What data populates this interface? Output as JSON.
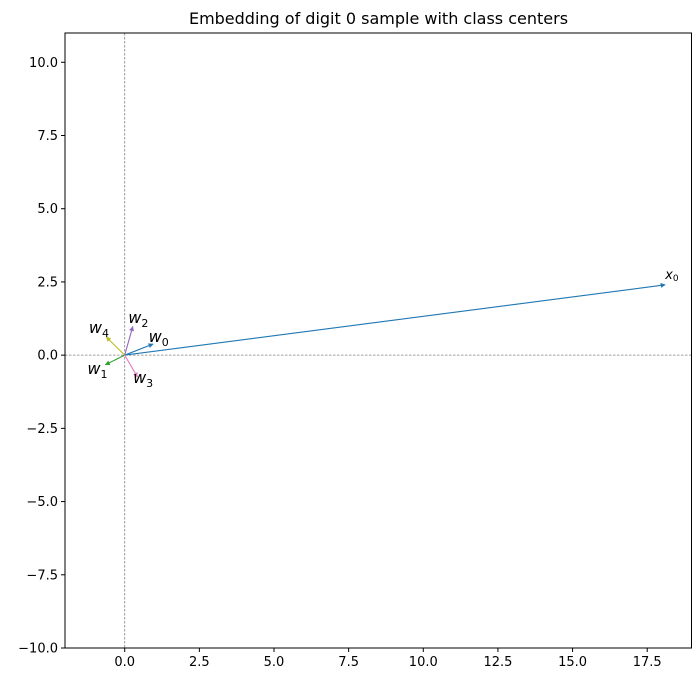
{
  "chart_data": {
    "type": "vector",
    "title": "Embedding of digit 0 sample with class centers",
    "xlabel": "",
    "ylabel": "",
    "xlim": [
      -2.0,
      19.0
    ],
    "ylim": [
      -10.0,
      11.0
    ],
    "x_ticks": [
      0.0,
      2.5,
      5.0,
      7.5,
      10.0,
      12.5,
      15.0,
      17.5
    ],
    "x_tick_labels": [
      "0.0",
      "2.5",
      "5.0",
      "7.5",
      "10.0",
      "12.5",
      "15.0",
      "17.5"
    ],
    "y_ticks": [
      -10.0,
      -7.5,
      -5.0,
      -2.5,
      0.0,
      2.5,
      5.0,
      7.5,
      10.0
    ],
    "y_tick_labels": [
      "−10.0",
      "−7.5",
      "−5.0",
      "−2.5",
      "0.0",
      "2.5",
      "5.0",
      "7.5",
      "10.0"
    ],
    "grid": false,
    "reference_lines": {
      "x": 0,
      "y": 0,
      "style": "dashed",
      "color": "#808080"
    },
    "vectors": [
      {
        "name": "x",
        "sub": "0",
        "x": 18.1,
        "y": 2.4,
        "color": "#1f77b4",
        "label_x": 18.1,
        "label_y": 2.6
      },
      {
        "name": "w",
        "sub": "0",
        "x": 0.95,
        "y": 0.38,
        "color": "#1f77b4",
        "label_x": 0.8,
        "label_y": 0.45
      },
      {
        "name": "w",
        "sub": "1",
        "x": -0.65,
        "y": -0.33,
        "color": "#2ca02c",
        "label_x": -1.25,
        "label_y": -0.65
      },
      {
        "name": "w",
        "sub": "2",
        "x": 0.27,
        "y": 0.98,
        "color": "#9467bd",
        "label_x": 0.12,
        "label_y": 1.1
      },
      {
        "name": "w",
        "sub": "3",
        "x": 0.43,
        "y": -0.75,
        "color": "#e377c2",
        "label_x": 0.28,
        "label_y": -0.95
      },
      {
        "name": "w",
        "sub": "4",
        "x": -0.62,
        "y": 0.62,
        "color": "#bcbd22",
        "label_x": -1.2,
        "label_y": 0.75
      }
    ]
  }
}
